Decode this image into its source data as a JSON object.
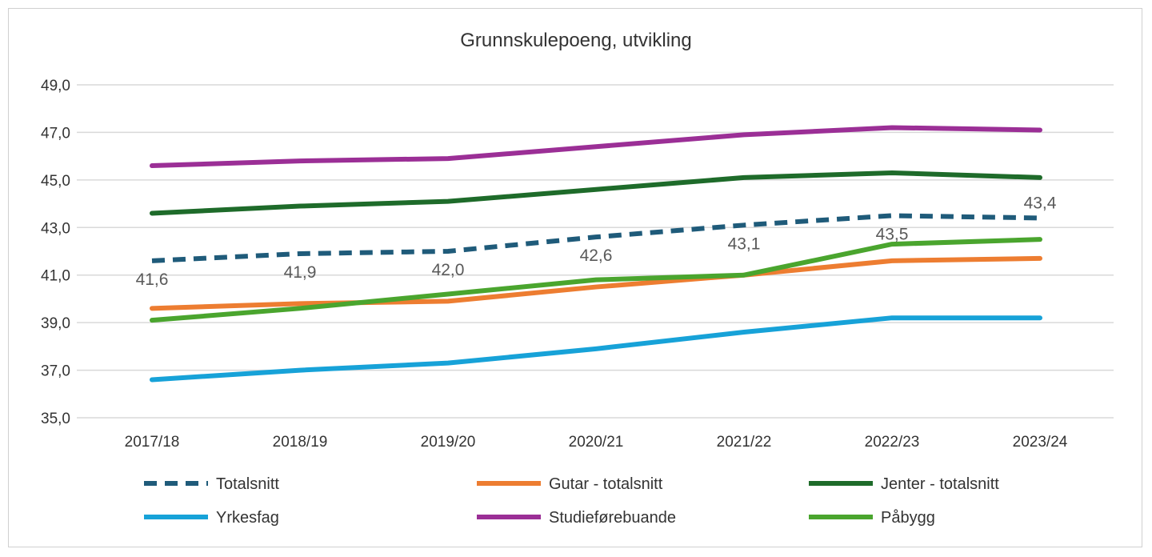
{
  "chart_data": {
    "type": "line",
    "title": "Grunnskulepoeng, utvikling",
    "xlabel": "",
    "ylabel": "",
    "categories": [
      "2017/18",
      "2018/19",
      "2019/20",
      "2020/21",
      "2021/22",
      "2022/23",
      "2023/24"
    ],
    "ylim": [
      35,
      49
    ],
    "yticks": [
      "35,0",
      "37,0",
      "39,0",
      "41,0",
      "43,0",
      "45,0",
      "47,0",
      "49,0"
    ],
    "grid": true,
    "legend_position": "bottom",
    "series": [
      {
        "name": "Totalsnitt",
        "color": "#1f5b7a",
        "dashed": true,
        "values": [
          41.6,
          41.9,
          42.0,
          42.6,
          43.1,
          43.5,
          43.4
        ],
        "data_labels": [
          "41,6",
          "41,9",
          "42,0",
          "42,6",
          "43,1",
          "43,5",
          "43,4"
        ]
      },
      {
        "name": "Gutar - totalsnitt",
        "color": "#ed7d31",
        "dashed": false,
        "values": [
          39.6,
          39.8,
          39.9,
          40.5,
          41.0,
          41.6,
          41.7
        ]
      },
      {
        "name": "Jenter - totalsnitt",
        "color": "#1e6b2a",
        "dashed": false,
        "values": [
          43.6,
          43.9,
          44.1,
          44.6,
          45.1,
          45.3,
          45.1
        ]
      },
      {
        "name": "Yrkesfag",
        "color": "#17a2d8",
        "dashed": false,
        "values": [
          36.6,
          37.0,
          37.3,
          37.9,
          38.6,
          39.2,
          39.2
        ]
      },
      {
        "name": "Studieførebuande",
        "color": "#9b2f96",
        "dashed": false,
        "values": [
          45.6,
          45.8,
          45.9,
          46.4,
          46.9,
          47.2,
          47.1
        ]
      },
      {
        "name": "Påbygg",
        "color": "#4aa52e",
        "dashed": false,
        "values": [
          39.1,
          39.6,
          40.2,
          40.8,
          41.0,
          42.3,
          42.5
        ]
      }
    ]
  }
}
